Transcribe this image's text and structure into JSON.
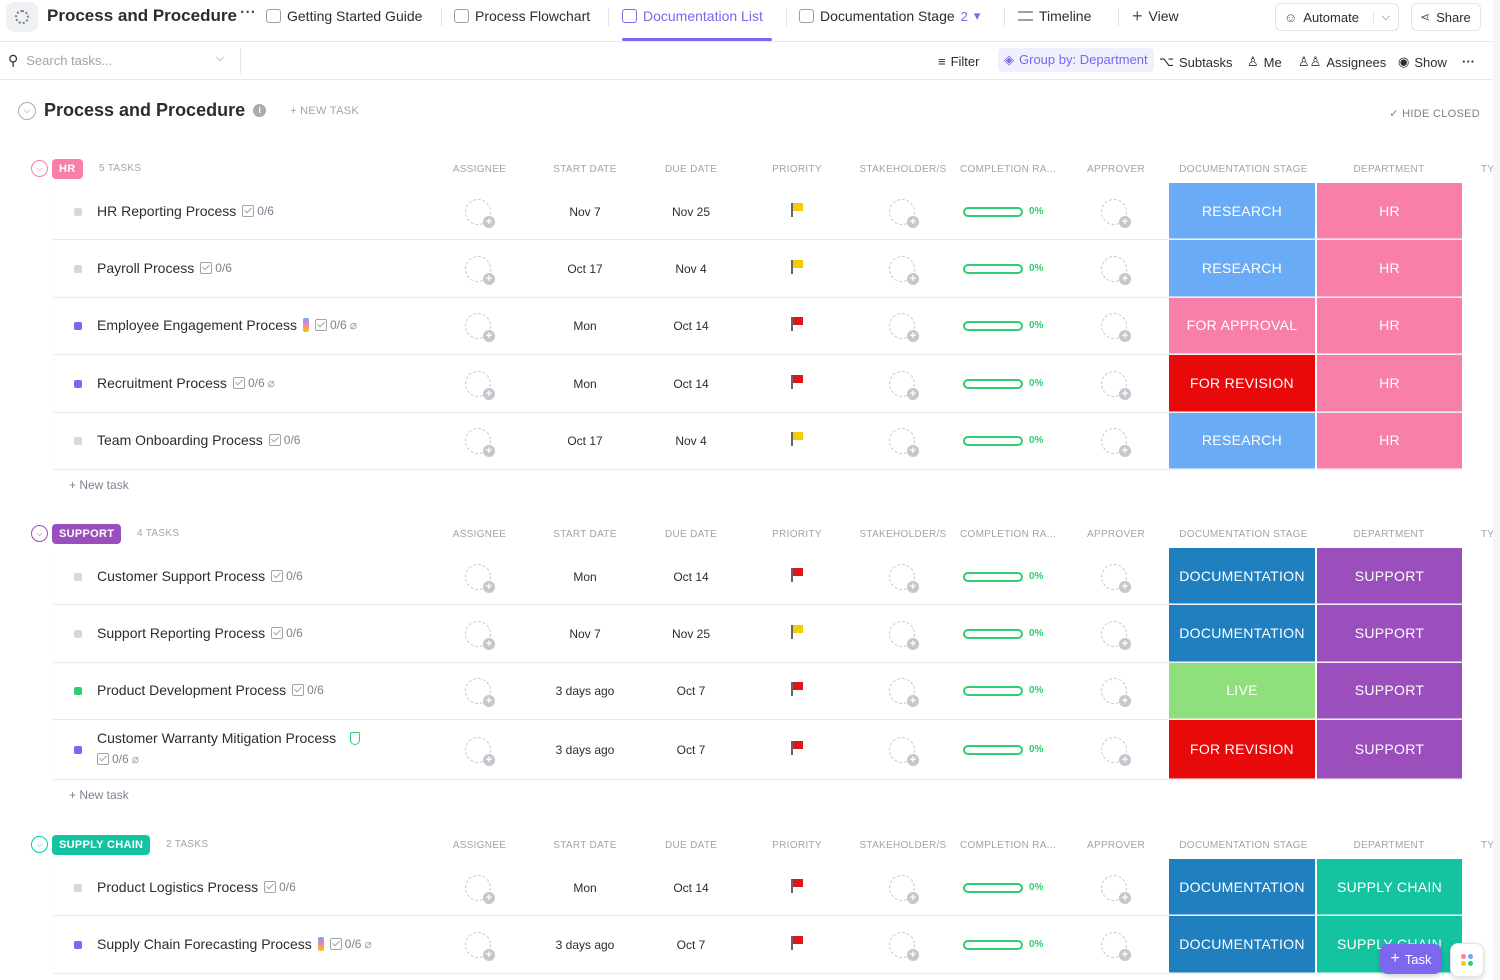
{
  "header": {
    "title": "Process and Procedure",
    "more": "···",
    "tabs": [
      {
        "label": "Getting Started Guide",
        "icon": "doc-icon"
      },
      {
        "label": "Process Flowchart",
        "icon": "whiteboard-icon"
      },
      {
        "label": "Documentation List",
        "icon": "list-icon",
        "active": true
      },
      {
        "label": "Documentation Stage",
        "icon": "board-icon",
        "badge": "2"
      },
      {
        "label": "Timeline",
        "icon": "timeline-icon"
      },
      {
        "label": "View",
        "icon": "plus-icon"
      }
    ],
    "automate": "Automate",
    "share": "Share"
  },
  "toolbar": {
    "search_placeholder": "Search tasks...",
    "filter": "Filter",
    "group_by": "Group by: Department",
    "subtasks": "Subtasks",
    "me": "Me",
    "assignees": "Assignees",
    "show": "Show",
    "more": "···"
  },
  "list": {
    "title": "Process and Procedure",
    "new_task": "+ NEW TASK",
    "hide_closed": "HIDE CLOSED"
  },
  "columns": {
    "assignee": "ASSIGNEE",
    "start_date": "START DATE",
    "due_date": "DUE DATE",
    "priority": "PRIORITY",
    "stakeholders": "STAKEHOLDER/S",
    "completion": "COMPLETION RA...",
    "approver": "APPROVER",
    "doc_stage": "DOCUMENTATION STAGE",
    "department": "DEPARTMENT",
    "type": "TY"
  },
  "colors": {
    "accent": "#7b68ee",
    "research": "#6aabf5",
    "for_approval": "#f97fab",
    "for_revision": "#e80a0a",
    "documentation": "#1f7fbf",
    "live": "#8fe07c",
    "hr": "#f97fab",
    "support": "#9a4fbd",
    "supply_chain": "#14c4a0",
    "flag_yellow": "#f5cd00",
    "flag_red": "#e0151b"
  },
  "groups": [
    {
      "name": "HR",
      "color": "#f97fab",
      "count": "5 TASKS",
      "new_task": "+ New task",
      "tasks": [
        {
          "name": "HR Reporting Process",
          "subtasks": "0/6",
          "status_color": "#d6d8dc",
          "start": "Nov 7",
          "due": "Nov 25",
          "priority": "#f5cd00",
          "completion": "0%",
          "stage": "RESEARCH",
          "stage_color": "#6aabf5",
          "department": "HR",
          "dept_color": "#f97fab"
        },
        {
          "name": "Payroll Process",
          "subtasks": "0/6",
          "status_color": "#d6d8dc",
          "start": "Oct 17",
          "due": "Nov 4",
          "priority": "#f5cd00",
          "completion": "0%",
          "stage": "RESEARCH",
          "stage_color": "#6aabf5",
          "department": "HR",
          "dept_color": "#f97fab"
        },
        {
          "name": "Employee Engagement Process",
          "subtasks": "0/6",
          "status_color": "#7b68ee",
          "start": "Mon",
          "due": "Oct 14",
          "priority": "#e0151b",
          "completion": "0%",
          "stage": "FOR APPROVAL",
          "stage_color": "#f97fab",
          "department": "HR",
          "dept_color": "#f97fab",
          "extra_icon": true,
          "attachment": true
        },
        {
          "name": "Recruitment Process",
          "subtasks": "0/6",
          "status_color": "#7b68ee",
          "start": "Mon",
          "due": "Oct 14",
          "priority": "#e0151b",
          "completion": "0%",
          "stage": "FOR REVISION",
          "stage_color": "#e80a0a",
          "department": "HR",
          "dept_color": "#f97fab",
          "attachment": true
        },
        {
          "name": "Team Onboarding Process",
          "subtasks": "0/6",
          "status_color": "#d6d8dc",
          "start": "Oct 17",
          "due": "Nov 4",
          "priority": "#f5cd00",
          "completion": "0%",
          "stage": "RESEARCH",
          "stage_color": "#6aabf5",
          "department": "HR",
          "dept_color": "#f97fab"
        }
      ]
    },
    {
      "name": "SUPPORT",
      "color": "#9a4fbd",
      "count": "4 TASKS",
      "new_task": "+ New task",
      "tasks": [
        {
          "name": "Customer Support Process",
          "subtasks": "0/6",
          "status_color": "#d6d8dc",
          "start": "Mon",
          "due": "Oct 14",
          "priority": "#e0151b",
          "completion": "0%",
          "stage": "DOCUMENTATION",
          "stage_color": "#1f7fbf",
          "department": "SUPPORT",
          "dept_color": "#9a4fbd"
        },
        {
          "name": "Support Reporting Process",
          "subtasks": "0/6",
          "status_color": "#d6d8dc",
          "start": "Nov 7",
          "due": "Nov 25",
          "priority": "#f5cd00",
          "completion": "0%",
          "stage": "DOCUMENTATION",
          "stage_color": "#1f7fbf",
          "department": "SUPPORT",
          "dept_color": "#9a4fbd"
        },
        {
          "name": "Product Development Process",
          "subtasks": "0/6",
          "status_color": "#2ecd6f",
          "start": "3 days ago",
          "due": "Oct 7",
          "priority": "#e0151b",
          "completion": "0%",
          "stage": "LIVE",
          "stage_color": "#8fe07c",
          "department": "SUPPORT",
          "dept_color": "#9a4fbd"
        },
        {
          "name": "Customer Warranty Mitigation Process",
          "subtasks": "0/6",
          "status_color": "#7b68ee",
          "start": "3 days ago",
          "due": "Oct 7",
          "priority": "#e0151b",
          "completion": "0%",
          "stage": "FOR REVISION",
          "stage_color": "#e80a0a",
          "department": "SUPPORT",
          "dept_color": "#9a4fbd",
          "wrap": true,
          "attachment": true,
          "shield_icon": true
        }
      ]
    },
    {
      "name": "SUPPLY CHAIN",
      "color": "#14c4a0",
      "count": "2 TASKS",
      "tasks": [
        {
          "name": "Product Logistics Process",
          "subtasks": "0/6",
          "status_color": "#d6d8dc",
          "start": "Mon",
          "due": "Oct 14",
          "priority": "#e0151b",
          "completion": "0%",
          "stage": "DOCUMENTATION",
          "stage_color": "#1f7fbf",
          "department": "SUPPLY CHAIN",
          "dept_color": "#14c4a0"
        },
        {
          "name": "Supply Chain Forecasting Process",
          "subtasks": "0/6",
          "status_color": "#7b68ee",
          "start": "3 days ago",
          "due": "Oct 7",
          "priority": "#e0151b",
          "completion": "0%",
          "stage": "DOCUMENTATION",
          "stage_color": "#1f7fbf",
          "department": "SUPPLY CHAIN",
          "dept_color": "#14c4a0",
          "extra_icon": true,
          "attachment": true
        }
      ]
    }
  ],
  "fab": {
    "task": "Task"
  }
}
